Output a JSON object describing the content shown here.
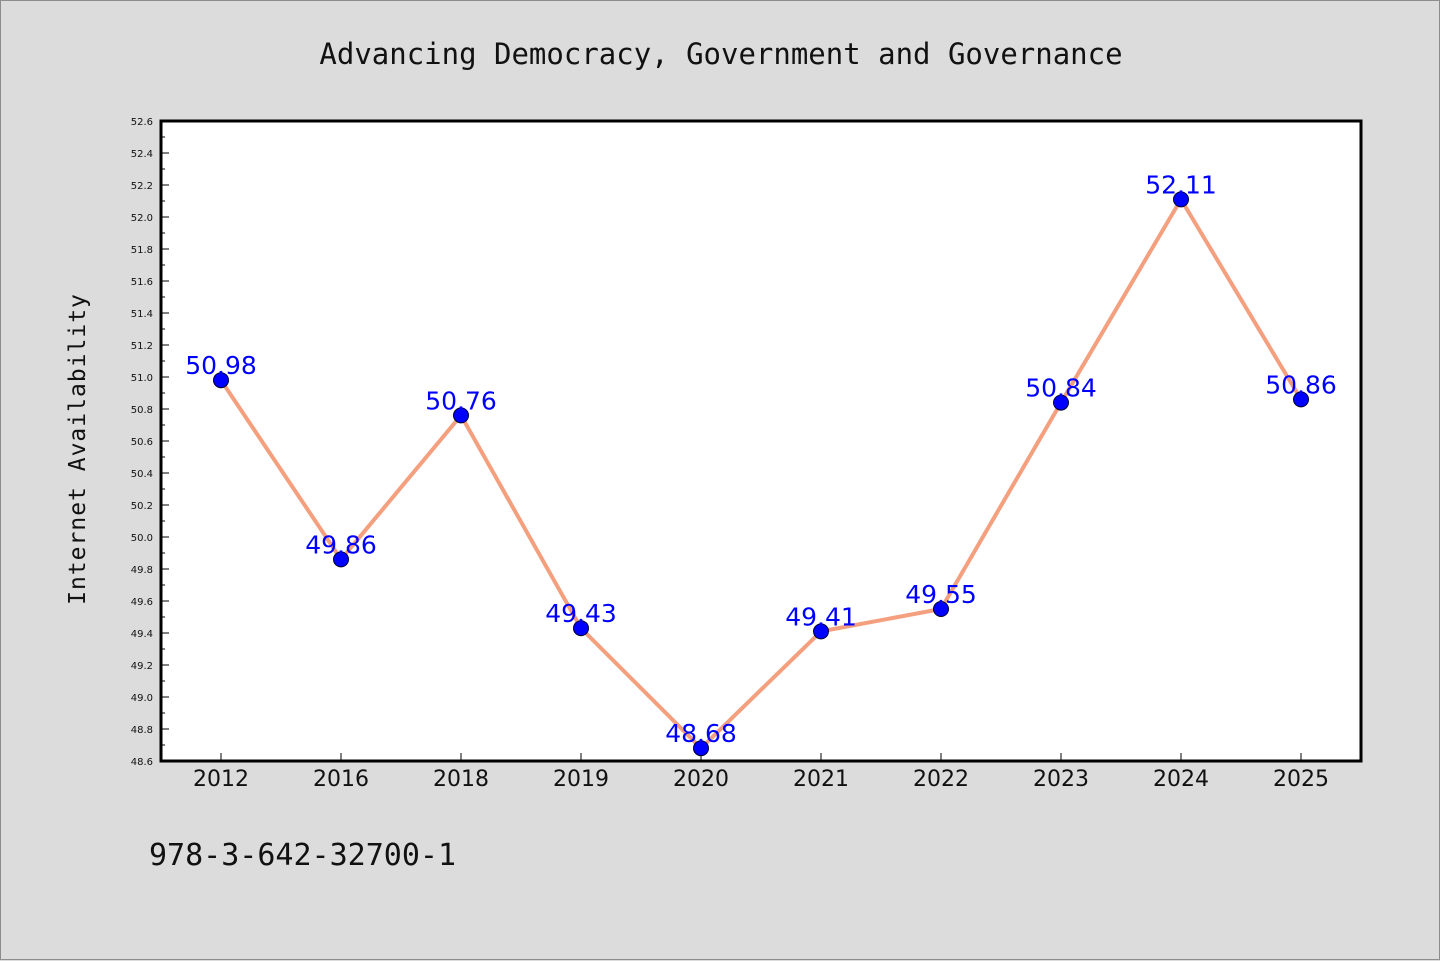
{
  "chart_data": {
    "type": "line",
    "title": "Advancing Democracy, Government and Governance",
    "xlabel": "",
    "ylabel": "Internet Availability",
    "categories": [
      "2012",
      "2016",
      "2018",
      "2019",
      "2020",
      "2021",
      "2022",
      "2023",
      "2024",
      "2025"
    ],
    "values": [
      50.98,
      49.86,
      50.76,
      49.43,
      48.68,
      49.41,
      49.55,
      50.84,
      52.11,
      50.86
    ],
    "data_labels": [
      "50.98",
      "49.86",
      "50.76",
      "49.43",
      "48.68",
      "49.41",
      "49.55",
      "50.84",
      "52.11",
      "50.86"
    ],
    "ylim": [
      48.6,
      52.6
    ],
    "yticks": [
      "48.6",
      "48.8",
      "49.0",
      "49.2",
      "49.4",
      "49.6",
      "49.8",
      "50.0",
      "50.2",
      "50.4",
      "50.6",
      "50.8",
      "51.0",
      "51.2",
      "51.4",
      "51.6",
      "51.8",
      "52.0",
      "52.2",
      "52.4",
      "52.6"
    ],
    "grid": false,
    "legend": "none",
    "line_color": "#f4a07e",
    "marker_color": "#0000ff",
    "label_color": "#0000ff"
  },
  "footer": {
    "isbn": "978-3-642-32700-1"
  }
}
